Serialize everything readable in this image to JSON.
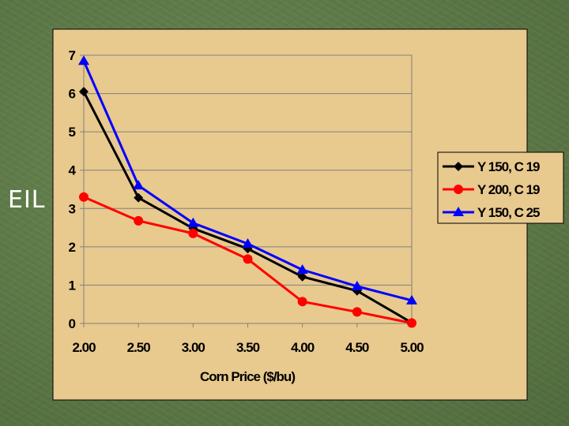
{
  "slide": {
    "side_label": "EIL"
  },
  "colors": {
    "background": "#5f7a48",
    "chart_area": "#e8c98e",
    "plot_border": "#808080",
    "gridline": "#808080"
  },
  "chart_data": {
    "type": "line",
    "title": "",
    "xlabel": "Corn Price ($/bu)",
    "ylabel": "",
    "x": [
      2.0,
      2.5,
      3.0,
      3.5,
      4.0,
      4.5,
      5.0
    ],
    "x_tick_labels": [
      "2.00",
      "2.50",
      "3.00",
      "3.50",
      "4.00",
      "4.50",
      "5.00"
    ],
    "ylim": [
      0,
      7
    ],
    "y_ticks": [
      0,
      1,
      2,
      3,
      4,
      5,
      6,
      7
    ],
    "grid": "horizontal",
    "legend_position": "right",
    "series": [
      {
        "name": "Y 150, C 19",
        "color": "#000000",
        "marker": "diamond",
        "values": [
          6.05,
          3.28,
          2.48,
          1.95,
          1.22,
          0.85,
          0.02
        ]
      },
      {
        "name": "Y 200, C 19",
        "color": "#ff0000",
        "marker": "circle",
        "values": [
          3.3,
          2.68,
          2.35,
          1.68,
          0.57,
          0.3,
          0.01
        ]
      },
      {
        "name": "Y 150, C 25",
        "color": "#0000ff",
        "marker": "triangle",
        "values": [
          6.85,
          3.6,
          2.62,
          2.08,
          1.4,
          0.97,
          0.6
        ]
      }
    ]
  }
}
